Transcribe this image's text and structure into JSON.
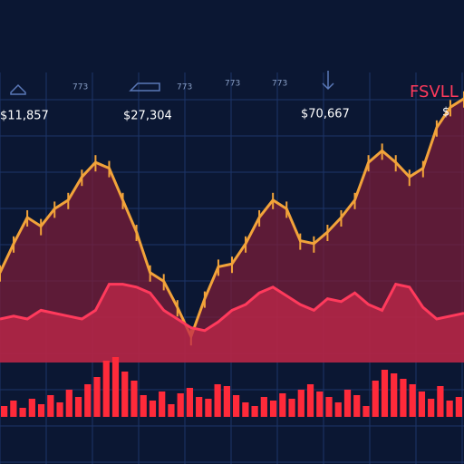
{
  "chart_data": [
    {
      "type": "area",
      "color": "#f2a33a",
      "fill": "#7a1e3a",
      "values": [
        31,
        41,
        50,
        47,
        53,
        56,
        64,
        69,
        67,
        56,
        45,
        31,
        28,
        19,
        9,
        22,
        33,
        34,
        41,
        50,
        56,
        53,
        42,
        41,
        45,
        50,
        56,
        69,
        73,
        69,
        64,
        67,
        81,
        88,
        91
      ],
      "ylim": [
        0,
        100
      ],
      "grid": true,
      "annotations": [
        "$11,857",
        "$27,304",
        "$70,667",
        "FSVLL",
        "$",
        "773",
        "773",
        "773",
        "773"
      ]
    },
    {
      "type": "area",
      "color": "#ff3a5c",
      "fill": "#c0284a",
      "values": [
        15,
        16,
        15,
        18,
        17,
        16,
        15,
        18,
        27,
        27,
        26,
        24,
        18,
        15,
        12,
        11,
        14,
        18,
        20,
        24,
        26,
        23,
        20,
        18,
        22,
        21,
        24,
        20,
        18,
        27,
        26,
        19,
        15,
        16,
        17
      ],
      "ylim": [
        0,
        100
      ]
    },
    {
      "type": "bar",
      "color": "#ff2a3a",
      "values": [
        12,
        18,
        10,
        20,
        14,
        24,
        16,
        30,
        22,
        36,
        44,
        62,
        66,
        50,
        40,
        24,
        18,
        28,
        14,
        26,
        32,
        22,
        20,
        36,
        34,
        24,
        16,
        12,
        22,
        18,
        26,
        20,
        30,
        36,
        28,
        22,
        16,
        30,
        24,
        12,
        40,
        52,
        48,
        42,
        36,
        28,
        20,
        34,
        18,
        22
      ],
      "ylim": [
        0,
        70
      ]
    }
  ]
}
